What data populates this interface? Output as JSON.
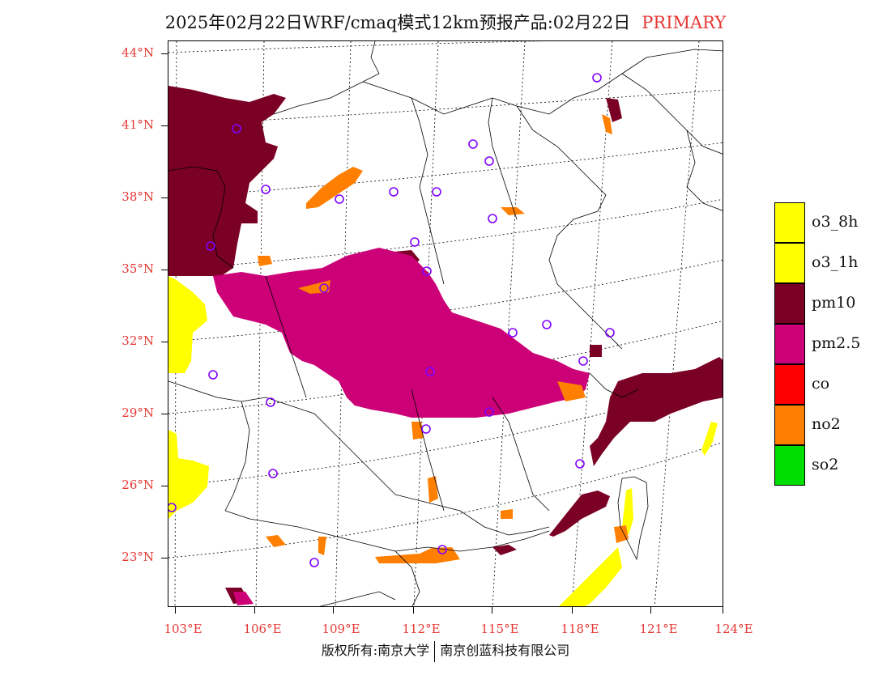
{
  "title": {
    "main": "2025年02月22日WRF/cmaq模式12km预报产品:02月22日",
    "tag": "PRIMARY"
  },
  "axes": {
    "lat_labels": [
      "44°N",
      "41°N",
      "38°N",
      "35°N",
      "32°N",
      "29°N",
      "26°N",
      "23°N"
    ],
    "lat_values": [
      44,
      41,
      38,
      35,
      32,
      29,
      26,
      23
    ],
    "lon_labels": [
      "103°E",
      "106°E",
      "109°E",
      "112°E",
      "115°E",
      "118°E",
      "121°E",
      "124°E"
    ],
    "lon_values": [
      103,
      106,
      109,
      112,
      115,
      118,
      121,
      124
    ]
  },
  "legend": [
    {
      "label": "o3_8h",
      "color": "#ffff00"
    },
    {
      "label": "o3_1h",
      "color": "#ffff00"
    },
    {
      "label": "pm10",
      "color": "#7a0026"
    },
    {
      "label": "pm2.5",
      "color": "#cc0077"
    },
    {
      "label": "co",
      "color": "#ff0000"
    },
    {
      "label": "no2",
      "color": "#ff7f00"
    },
    {
      "label": "so2",
      "color": "#00dd00"
    }
  ],
  "colors": {
    "label_red": "#e53935",
    "station_marker": "#7f00ff"
  },
  "footer": {
    "left": "版权所有:南京大学",
    "right": "南京创蓝科技有限公司"
  }
}
